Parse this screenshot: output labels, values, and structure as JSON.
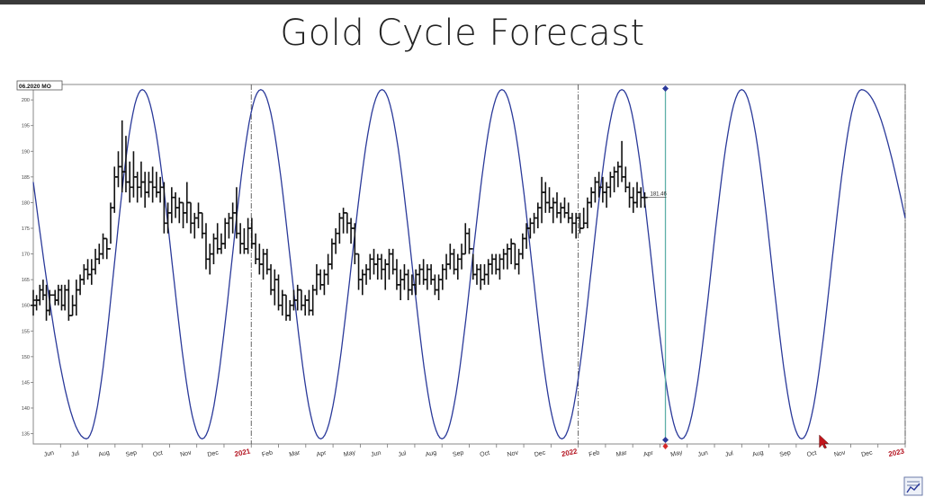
{
  "slide": {
    "title": "Gold Cycle Forecast"
  },
  "chart_data": {
    "type": "line",
    "title": "Gold Cycle Forecast",
    "corner_label": "06.2020 MO",
    "last_price_label": "181.46",
    "y_ticks": [
      "135",
      "140",
      "145",
      "150",
      "155",
      "160",
      "165",
      "170",
      "175",
      "180",
      "185",
      "190",
      "195",
      "200"
    ],
    "ylim": [
      133,
      203
    ],
    "x_ticks": [
      {
        "label": "Jun",
        "x": 1,
        "year": false
      },
      {
        "label": "Jul",
        "x": 2,
        "year": false
      },
      {
        "label": "Aug",
        "x": 3,
        "year": false
      },
      {
        "label": "Sep",
        "x": 4,
        "year": false
      },
      {
        "label": "Oct",
        "x": 5,
        "year": false
      },
      {
        "label": "Nov",
        "x": 6,
        "year": false
      },
      {
        "label": "Dec",
        "x": 7,
        "year": false
      },
      {
        "label": "2021",
        "x": 8,
        "year": true
      },
      {
        "label": "Feb",
        "x": 9,
        "year": false
      },
      {
        "label": "Mar",
        "x": 10,
        "year": false
      },
      {
        "label": "Apr",
        "x": 11,
        "year": false
      },
      {
        "label": "May",
        "x": 12,
        "year": false
      },
      {
        "label": "Jun",
        "x": 13,
        "year": false
      },
      {
        "label": "Jul",
        "x": 14,
        "year": false
      },
      {
        "label": "Aug",
        "x": 15,
        "year": false
      },
      {
        "label": "Sep",
        "x": 16,
        "year": false
      },
      {
        "label": "Oct",
        "x": 17,
        "year": false
      },
      {
        "label": "Nov",
        "x": 18,
        "year": false
      },
      {
        "label": "Dec",
        "x": 19,
        "year": false
      },
      {
        "label": "2022",
        "x": 20,
        "year": true
      },
      {
        "label": "Feb",
        "x": 21,
        "year": false
      },
      {
        "label": "Mar",
        "x": 22,
        "year": false
      },
      {
        "label": "Apr",
        "x": 23,
        "year": false
      },
      {
        "label": "May",
        "x": 24,
        "year": false
      },
      {
        "label": "Jun",
        "x": 25,
        "year": false
      },
      {
        "label": "Jul",
        "x": 26,
        "year": false
      },
      {
        "label": "Aug",
        "x": 27,
        "year": false
      },
      {
        "label": "Sep",
        "x": 28,
        "year": false
      },
      {
        "label": "Oct",
        "x": 29,
        "year": false
      },
      {
        "label": "Nov",
        "x": 30,
        "year": false
      },
      {
        "label": "Dec",
        "x": 31,
        "year": false
      },
      {
        "label": "2023",
        "x": 32,
        "year": true
      }
    ],
    "xlim": [
      0.0,
      32.0
    ],
    "year_dividers": [
      8,
      20,
      32
    ],
    "cursor_x": 23.2,
    "cycle": {
      "color": "#2b3a9a",
      "peaks_x": [
        4.0,
        8.35,
        12.8,
        17.2,
        21.6,
        26.0,
        30.4
      ],
      "troughs_x": [
        1.95,
        6.2,
        10.55,
        15.0,
        19.4,
        23.8,
        28.2
      ],
      "peak_value": 202,
      "trough_value": 134,
      "edge_points": [
        [
          0.0,
          184
        ],
        [
          32.0,
          177
        ]
      ]
    },
    "price": {
      "color": "#111111",
      "bars": [
        [
          0.0,
          163,
          158,
          160,
          161
        ],
        [
          0.12,
          162,
          159,
          160,
          161
        ],
        [
          0.24,
          164,
          160,
          161,
          163
        ],
        [
          0.36,
          165,
          161,
          163,
          162
        ],
        [
          0.48,
          164,
          157,
          162,
          159
        ],
        [
          0.6,
          163,
          158,
          159,
          162
        ],
        [
          0.8,
          163,
          160,
          162,
          161
        ],
        [
          0.92,
          164,
          160,
          161,
          163
        ],
        [
          1.04,
          164,
          159,
          163,
          160
        ],
        [
          1.16,
          164,
          159,
          160,
          163
        ],
        [
          1.3,
          165,
          157,
          163,
          158
        ],
        [
          1.44,
          162,
          158,
          158,
          160
        ],
        [
          1.58,
          165,
          158,
          160,
          163
        ],
        [
          1.72,
          166,
          162,
          163,
          165
        ],
        [
          1.86,
          168,
          164,
          165,
          167
        ],
        [
          2.0,
          169,
          165,
          167,
          166
        ],
        [
          2.14,
          169,
          164,
          166,
          167
        ],
        [
          2.28,
          171,
          166,
          167,
          169
        ],
        [
          2.42,
          172,
          168,
          169,
          170
        ],
        [
          2.56,
          174,
          169,
          170,
          173
        ],
        [
          2.7,
          173,
          169,
          173,
          171
        ],
        [
          2.84,
          180,
          172,
          171,
          179
        ],
        [
          2.98,
          187,
          178,
          179,
          185
        ],
        [
          3.12,
          190,
          183,
          185,
          187
        ],
        [
          3.26,
          196,
          182,
          187,
          186
        ],
        [
          3.4,
          193,
          182,
          186,
          184
        ],
        [
          3.54,
          188,
          180,
          184,
          183
        ],
        [
          3.68,
          190,
          181,
          183,
          185
        ],
        [
          3.82,
          186,
          180,
          185,
          183
        ],
        [
          3.96,
          188,
          181,
          183,
          184
        ],
        [
          4.1,
          186,
          179,
          184,
          182
        ],
        [
          4.24,
          186,
          181,
          182,
          184
        ],
        [
          4.38,
          187,
          180,
          184,
          183
        ],
        [
          4.52,
          186,
          181,
          183,
          182
        ],
        [
          4.66,
          185,
          180,
          182,
          183
        ],
        [
          4.8,
          184,
          174,
          183,
          176
        ],
        [
          4.94,
          180,
          174,
          176,
          178
        ],
        [
          5.08,
          183,
          176,
          178,
          181
        ],
        [
          5.22,
          182,
          177,
          181,
          179
        ],
        [
          5.36,
          181,
          176,
          179,
          180
        ],
        [
          5.5,
          180,
          175,
          180,
          178
        ],
        [
          5.64,
          184,
          176,
          178,
          180
        ],
        [
          5.78,
          180,
          174,
          180,
          176
        ],
        [
          5.92,
          178,
          173,
          176,
          177
        ],
        [
          6.06,
          180,
          175,
          177,
          178
        ],
        [
          6.2,
          178,
          173,
          178,
          174
        ],
        [
          6.34,
          176,
          167,
          174,
          169
        ],
        [
          6.48,
          172,
          166,
          169,
          170
        ],
        [
          6.62,
          174,
          168,
          170,
          173
        ],
        [
          6.76,
          176,
          170,
          173,
          171
        ],
        [
          6.9,
          174,
          170,
          171,
          172
        ],
        [
          7.04,
          177,
          171,
          172,
          176
        ],
        [
          7.18,
          178,
          173,
          176,
          177
        ],
        [
          7.32,
          180,
          174,
          177,
          178
        ],
        [
          7.46,
          183,
          173,
          178,
          174
        ],
        [
          7.6,
          176,
          170,
          174,
          172
        ],
        [
          7.74,
          175,
          170,
          172,
          171
        ],
        [
          7.88,
          177,
          170,
          171,
          175
        ],
        [
          8.02,
          177,
          171,
          175,
          172
        ],
        [
          8.16,
          174,
          168,
          172,
          169
        ],
        [
          8.3,
          172,
          166,
          169,
          168
        ],
        [
          8.44,
          171,
          165,
          168,
          170
        ],
        [
          8.58,
          171,
          166,
          170,
          167
        ],
        [
          8.72,
          168,
          162,
          167,
          163
        ],
        [
          8.86,
          167,
          160,
          163,
          165
        ],
        [
          9.0,
          166,
          159,
          165,
          160
        ],
        [
          9.14,
          163,
          158,
          160,
          162
        ],
        [
          9.28,
          162,
          157,
          162,
          158
        ],
        [
          9.42,
          161,
          157,
          158,
          160
        ],
        [
          9.56,
          163,
          159,
          160,
          161
        ],
        [
          9.7,
          164,
          159,
          161,
          163
        ],
        [
          9.84,
          163,
          159,
          163,
          160
        ],
        [
          9.98,
          162,
          158,
          160,
          161
        ],
        [
          10.12,
          163,
          158,
          161,
          159
        ],
        [
          10.26,
          164,
          158,
          159,
          163
        ],
        [
          10.4,
          168,
          162,
          163,
          166
        ],
        [
          10.54,
          167,
          163,
          166,
          164
        ],
        [
          10.68,
          167,
          162,
          164,
          166
        ],
        [
          10.82,
          170,
          164,
          166,
          168
        ],
        [
          10.96,
          173,
          167,
          168,
          172
        ],
        [
          11.1,
          175,
          170,
          172,
          174
        ],
        [
          11.24,
          178,
          172,
          174,
          177
        ],
        [
          11.38,
          179,
          174,
          177,
          178
        ],
        [
          11.52,
          178,
          174,
          178,
          176
        ],
        [
          11.66,
          177,
          172,
          176,
          175
        ],
        [
          11.8,
          176,
          168,
          175,
          170
        ],
        [
          11.94,
          170,
          163,
          170,
          165
        ],
        [
          12.08,
          167,
          162,
          165,
          166
        ],
        [
          12.22,
          168,
          164,
          166,
          167
        ],
        [
          12.36,
          170,
          165,
          167,
          169
        ],
        [
          12.5,
          171,
          166,
          169,
          168
        ],
        [
          12.64,
          170,
          165,
          168,
          169
        ],
        [
          12.78,
          170,
          165,
          169,
          167
        ],
        [
          12.92,
          169,
          163,
          167,
          168
        ],
        [
          13.06,
          171,
          165,
          168,
          170
        ],
        [
          13.2,
          171,
          166,
          170,
          167
        ],
        [
          13.34,
          169,
          163,
          167,
          164
        ],
        [
          13.48,
          167,
          161,
          164,
          165
        ],
        [
          13.62,
          168,
          163,
          165,
          166
        ],
        [
          13.76,
          167,
          161,
          166,
          163
        ],
        [
          13.9,
          166,
          162,
          163,
          164
        ],
        [
          14.04,
          167,
          162,
          164,
          166
        ],
        [
          14.18,
          168,
          164,
          166,
          167
        ],
        [
          14.32,
          169,
          164,
          167,
          165
        ],
        [
          14.46,
          168,
          163,
          165,
          167
        ],
        [
          14.6,
          168,
          164,
          167,
          165
        ],
        [
          14.74,
          166,
          162,
          165,
          163
        ],
        [
          14.88,
          166,
          161,
          163,
          165
        ],
        [
          15.02,
          168,
          163,
          165,
          167
        ],
        [
          15.16,
          170,
          165,
          167,
          168
        ],
        [
          15.3,
          172,
          167,
          168,
          170
        ],
        [
          15.44,
          171,
          166,
          170,
          167
        ],
        [
          15.58,
          170,
          165,
          167,
          169
        ],
        [
          15.72,
          172,
          167,
          169,
          170
        ],
        [
          15.86,
          176,
          170,
          170,
          174
        ],
        [
          16.0,
          175,
          170,
          174,
          171
        ],
        [
          16.14,
          170,
          165,
          171,
          166
        ],
        [
          16.28,
          168,
          164,
          166,
          167
        ],
        [
          16.42,
          168,
          163,
          167,
          165
        ],
        [
          16.56,
          168,
          164,
          165,
          166
        ],
        [
          16.7,
          169,
          164,
          166,
          168
        ],
        [
          16.84,
          170,
          166,
          168,
          169
        ],
        [
          16.98,
          170,
          166,
          169,
          167
        ],
        [
          17.12,
          170,
          165,
          167,
          169
        ],
        [
          17.26,
          171,
          167,
          169,
          170
        ],
        [
          17.4,
          172,
          167,
          170,
          171
        ],
        [
          17.54,
          173,
          168,
          171,
          172
        ],
        [
          17.68,
          172,
          167,
          172,
          168
        ],
        [
          17.82,
          171,
          166,
          168,
          170
        ],
        [
          17.96,
          174,
          169,
          170,
          173
        ],
        [
          18.1,
          176,
          171,
          173,
          175
        ],
        [
          18.24,
          177,
          173,
          175,
          176
        ],
        [
          18.38,
          178,
          174,
          176,
          177
        ],
        [
          18.52,
          180,
          175,
          177,
          179
        ],
        [
          18.66,
          185,
          176,
          179,
          182
        ],
        [
          18.8,
          184,
          178,
          182,
          180
        ],
        [
          18.94,
          183,
          178,
          180,
          179
        ],
        [
          19.08,
          181,
          176,
          179,
          180
        ],
        [
          19.22,
          182,
          177,
          180,
          178
        ],
        [
          19.36,
          180,
          176,
          178,
          179
        ],
        [
          19.5,
          181,
          177,
          179,
          178
        ],
        [
          19.64,
          180,
          176,
          178,
          177
        ],
        [
          19.78,
          178,
          174,
          177,
          176
        ],
        [
          19.92,
          178,
          173,
          176,
          177
        ],
        [
          20.06,
          178,
          174,
          177,
          175
        ],
        [
          20.2,
          179,
          175,
          175,
          176
        ],
        [
          20.34,
          181,
          175,
          176,
          180
        ],
        [
          20.48,
          183,
          179,
          180,
          182
        ],
        [
          20.62,
          185,
          180,
          182,
          184
        ],
        [
          20.76,
          186,
          181,
          184,
          183
        ],
        [
          20.9,
          185,
          180,
          183,
          182
        ],
        [
          21.04,
          184,
          179,
          182,
          183
        ],
        [
          21.18,
          186,
          181,
          183,
          185
        ],
        [
          21.32,
          187,
          182,
          185,
          186
        ],
        [
          21.46,
          188,
          183,
          186,
          187
        ],
        [
          21.6,
          192,
          184,
          187,
          185
        ],
        [
          21.74,
          187,
          182,
          185,
          183
        ],
        [
          21.88,
          184,
          179,
          183,
          181
        ],
        [
          22.02,
          183,
          178,
          181,
          180
        ],
        [
          22.16,
          184,
          179,
          180,
          182
        ],
        [
          22.3,
          183,
          179,
          182,
          181
        ],
        [
          22.44,
          182,
          179,
          181,
          181
        ]
      ]
    }
  }
}
